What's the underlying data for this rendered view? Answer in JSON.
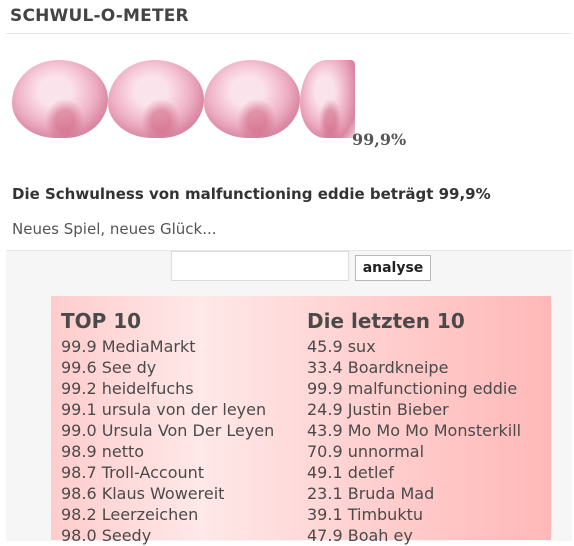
{
  "page": {
    "title": "SCHWUL-O-METER",
    "meter_percent": "99,9%",
    "meter_value": 99.9,
    "result_text": "Die Schwulness von malfunctioning eddie beträgt 99,9%",
    "tagline": "Neues Spiel, neues Glück..."
  },
  "form": {
    "input_value": "",
    "button_label": "analyse"
  },
  "top10": {
    "heading": "TOP 10",
    "entries": [
      "99.9 MediaMarkt",
      "99.6 See dy",
      "99.2 heidelfuchs",
      "99.1 ursula von der leyen",
      "99.0 Ursula Von Der Leyen",
      "98.9 netto",
      "98.7 Troll-Account",
      "98.6 Klaus Wowereit",
      "98.2 Leerzeichen",
      "98.0 Seedy"
    ]
  },
  "last10": {
    "heading": "Die letzten 10",
    "entries": [
      "45.9 sux",
      "33.4 Boardkneipe",
      "99.9 malfunctioning eddie",
      "24.9 Justin Bieber",
      "43.9 Mo Mo Mo Monsterkill",
      "70.9 unnormal",
      "49.1 detlef",
      "23.1 Bruda Mad",
      "39.1 Timbuktu",
      "47.9 Boah ey"
    ]
  },
  "colors": {
    "list_gradient_start": "#ffcccc",
    "list_gradient_end": "#ffb8b8",
    "meter_pink": "#f1b8cb"
  },
  "icons": [
    "pink-fluff-icon"
  ]
}
